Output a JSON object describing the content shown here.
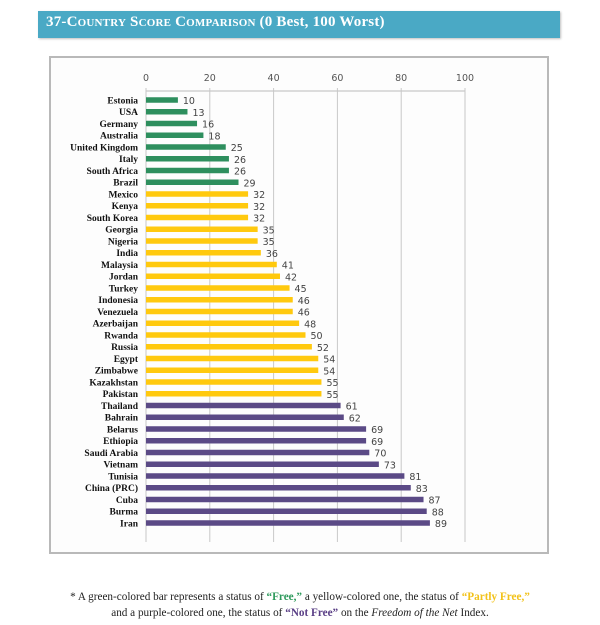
{
  "header": {
    "title": "37-Country Score Comparison",
    "subtitle": "(0 Best, 100 Worst)"
  },
  "colors": {
    "title_bar": "#4aa9c5",
    "free": "#2e8f5e",
    "partly_free": "#ffc90e",
    "not_free": "#5b4a86",
    "gridline": "#c8c8c8"
  },
  "chart_data": {
    "type": "bar",
    "orientation": "horizontal",
    "title": "37-Country Score Comparison (0 Best, 100 Worst)",
    "xlabel": "",
    "ylabel": "",
    "xlim": [
      0,
      100
    ],
    "x_ticks": [
      0,
      20,
      40,
      60,
      80,
      100
    ],
    "x_axis_position": "top",
    "grid": true,
    "categories": [
      "Estonia",
      "USA",
      "Germany",
      "Australia",
      "United Kingdom",
      "Italy",
      "South Africa",
      "Brazil",
      "Mexico",
      "Kenya",
      "South Korea",
      "Georgia",
      "Nigeria",
      "India",
      "Malaysia",
      "Jordan",
      "Turkey",
      "Indonesia",
      "Venezuela",
      "Azerbaijan",
      "Rwanda",
      "Russia",
      "Egypt",
      "Zimbabwe",
      "Kazakhstan",
      "Pakistan",
      "Thailand",
      "Bahrain",
      "Belarus",
      "Ethiopia",
      "Saudi Arabia",
      "Vietnam",
      "Tunisia",
      "China (PRC)",
      "Cuba",
      "Burma",
      "Iran"
    ],
    "values": [
      10,
      13,
      16,
      18,
      25,
      26,
      26,
      29,
      32,
      32,
      32,
      35,
      35,
      36,
      41,
      42,
      45,
      46,
      46,
      48,
      50,
      52,
      54,
      54,
      55,
      55,
      61,
      62,
      69,
      69,
      70,
      73,
      81,
      83,
      87,
      88,
      89
    ],
    "status": [
      "free",
      "free",
      "free",
      "free",
      "free",
      "free",
      "free",
      "free",
      "partly_free",
      "partly_free",
      "partly_free",
      "partly_free",
      "partly_free",
      "partly_free",
      "partly_free",
      "partly_free",
      "partly_free",
      "partly_free",
      "partly_free",
      "partly_free",
      "partly_free",
      "partly_free",
      "partly_free",
      "partly_free",
      "partly_free",
      "partly_free",
      "not_free",
      "not_free",
      "not_free",
      "not_free",
      "not_free",
      "not_free",
      "not_free",
      "not_free",
      "not_free",
      "not_free",
      "not_free"
    ],
    "legend": {
      "free": "Free",
      "partly_free": "Partly Free",
      "not_free": "Not Free"
    }
  },
  "footnote": {
    "part1": "* A green-colored bar represents a status of ",
    "free": "“Free,”",
    "part2": " a yellow-colored one, the status of ",
    "partly_free": "“Partly Free,”",
    "part3": " and a purple-colored one, the status of ",
    "not_free": "“Not Free”",
    "part4": " on the ",
    "index_name": "Freedom of the Net",
    "part5": " Index."
  }
}
